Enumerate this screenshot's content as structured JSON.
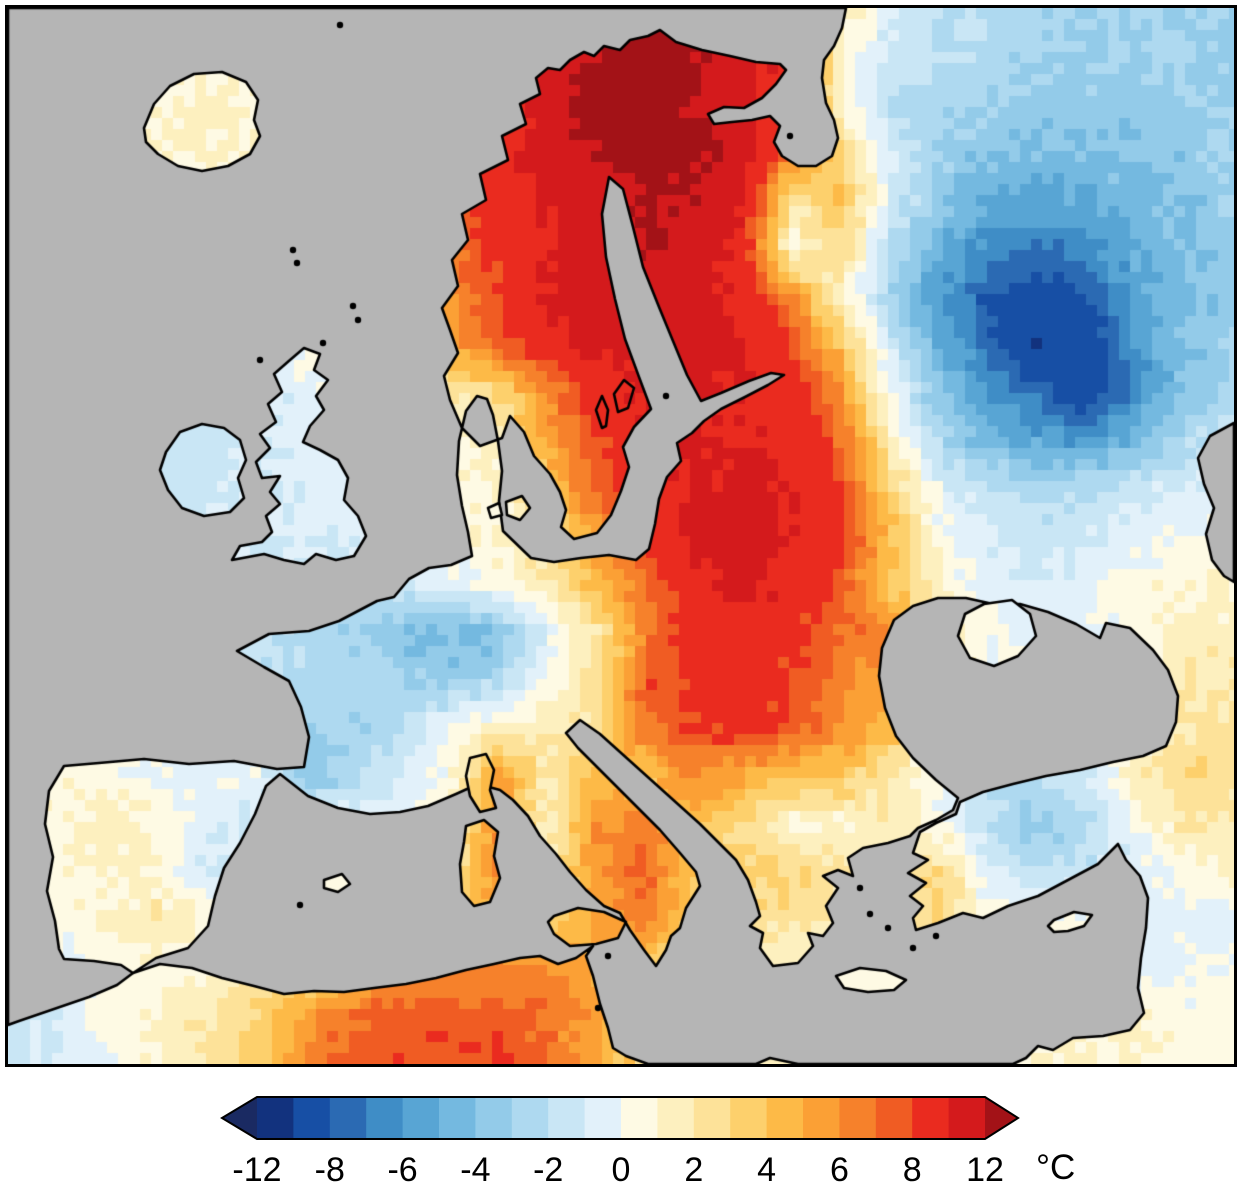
{
  "figure": {
    "description": "Pixelated temperature-anomaly map of Europe; land colored by anomaly, oceans masked gray",
    "sea_color": "#b5b5b5",
    "coastline_color": "#000000",
    "frame_color": "#000000",
    "background_color": "#ffffff"
  },
  "chart_data": {
    "type": "heatmap",
    "title": "",
    "units": "°C",
    "colorbar": {
      "unit_label": "°C",
      "orientation": "horizontal",
      "arrow_ends": true,
      "tick_labels": [
        "-12",
        "-8",
        "-6",
        "-4",
        "-2",
        "0",
        "2",
        "4",
        "6",
        "8",
        "12"
      ],
      "tick_values": [
        -12,
        -8,
        -6,
        -4,
        -2,
        0,
        2,
        4,
        6,
        8,
        12
      ],
      "tick_boundary_indices": [
        0,
        2,
        4,
        6,
        8,
        10,
        12,
        14,
        16,
        18,
        20
      ],
      "level_boundaries": [
        -12,
        -10,
        -8,
        -7,
        -6,
        -5,
        -4,
        -3,
        -2,
        -1,
        0,
        1,
        2,
        3,
        4,
        5,
        6,
        7,
        8,
        10,
        12
      ],
      "colors": [
        "#1a2a62",
        "#12327e",
        "#174fa5",
        "#2b6ab3",
        "#3f8dc6",
        "#58a5d4",
        "#74b9e0",
        "#93cbe9",
        "#aed9f0",
        "#c9e6f5",
        "#e2f1fa",
        "#fefae4",
        "#fdf0bf",
        "#fde299",
        "#fdd06c",
        "#fdba47",
        "#fba035",
        "#f6812b",
        "#f05c23",
        "#ea2b1f",
        "#d41a1c",
        "#a31217"
      ]
    },
    "grid": {
      "cols": 26,
      "rows": 23,
      "note": "anomaly values in degC sampled on a coarse lattice spanning the map area, west-to-east / north-to-south",
      "values": [
        [
          -1,
          -1,
          0,
          0,
          0,
          1,
          2,
          4,
          6,
          8,
          10,
          11,
          12,
          13,
          12,
          10,
          8,
          2,
          -1,
          -2,
          -2,
          -2.5,
          -3,
          -3,
          -3,
          -3
        ],
        [
          -1,
          -0.5,
          0,
          0.5,
          0,
          1,
          2,
          4,
          6,
          8,
          10,
          11,
          12,
          13,
          12,
          11,
          9,
          1,
          -1.5,
          -2,
          -2.5,
          -3,
          -3,
          -3,
          -3,
          -3
        ],
        [
          -0.5,
          0,
          0.5,
          1,
          1.5,
          1,
          2,
          3.5,
          5.5,
          7,
          9,
          11,
          13,
          13,
          12,
          11,
          8,
          1,
          -2,
          -2.5,
          -3,
          -3.5,
          -3.5,
          -3.5,
          -3,
          -3
        ],
        [
          0,
          0,
          0.5,
          1,
          1,
          1,
          1.5,
          3,
          5,
          7,
          9,
          11,
          12,
          13,
          12.5,
          11,
          7,
          3,
          -1,
          -3,
          -4,
          -4,
          -4,
          -4,
          -3.5,
          -3
        ],
        [
          0,
          0,
          0,
          0.5,
          0.5,
          0.5,
          1,
          2.5,
          5,
          7,
          9,
          10,
          11,
          12,
          12,
          10,
          2,
          4,
          -1,
          -3.5,
          -5,
          -5.5,
          -5,
          -4.5,
          -4,
          -3
        ],
        [
          0,
          0,
          0,
          0,
          0,
          0.5,
          1,
          2,
          4.5,
          6.5,
          8.5,
          10,
          11,
          12,
          11.5,
          9,
          0.5,
          3,
          -2,
          -5,
          -6.5,
          -7,
          -6.5,
          -5,
          -4,
          -3.5
        ],
        [
          -0.5,
          -0.5,
          -0.5,
          -0.5,
          -0.5,
          0,
          0.5,
          1.5,
          4,
          6,
          8,
          10,
          11,
          11.5,
          11,
          9.5,
          6,
          1,
          -3,
          -6,
          -8,
          -9,
          -8,
          -5.5,
          -4,
          -3.5
        ],
        [
          -0.5,
          -0.5,
          -1,
          -1,
          -1,
          -0.5,
          0,
          1,
          3.5,
          5.5,
          7.5,
          9.5,
          10.5,
          11,
          11,
          10,
          8,
          4,
          -1,
          -5,
          -7.5,
          -10,
          -9.5,
          -6,
          -4,
          -3
        ],
        [
          -0.5,
          -1,
          -1,
          -1.5,
          -1.5,
          -1,
          -0.5,
          0,
          1,
          2,
          3,
          6,
          8.5,
          10.5,
          10.5,
          10,
          9,
          6,
          0,
          -4,
          -6,
          -7.5,
          -9.5,
          -6.5,
          -4,
          -2.5
        ],
        [
          -0.5,
          -1,
          -1,
          -1.5,
          -1.5,
          -1,
          -0.5,
          0,
          0.5,
          1,
          1.5,
          5.5,
          8,
          9.5,
          10,
          10,
          9.5,
          7,
          1.5,
          -2.5,
          -4.5,
          -5.5,
          -6,
          -4.5,
          -2.5,
          -1.5
        ],
        [
          -0.5,
          -0.5,
          -1,
          -1.5,
          -1.5,
          -1,
          -1,
          -0.5,
          0,
          0.5,
          1,
          3.5,
          7.5,
          9,
          10,
          10.5,
          10,
          8,
          3,
          -0.5,
          -2,
          -2.5,
          -2,
          -1.5,
          -1,
          -0.5
        ],
        [
          -0.5,
          -0.5,
          -0.5,
          -1,
          -1,
          -1,
          -1,
          -0.5,
          0,
          0.5,
          1,
          2.5,
          5.5,
          8,
          10.5,
          11,
          10,
          8.5,
          4.5,
          0.5,
          -1,
          -1.5,
          -1,
          -0.5,
          0,
          0.5
        ],
        [
          0,
          0,
          -0.5,
          -0.5,
          -1,
          -1.5,
          -1.5,
          -2,
          -1.5,
          -0.5,
          0.5,
          2,
          4.5,
          7,
          9.5,
          10.5,
          9.5,
          7.5,
          4,
          1,
          -0.5,
          -1,
          -0.5,
          0.5,
          1,
          1
        ],
        [
          0,
          0,
          0,
          -0.5,
          -1,
          -1.5,
          -2.5,
          -3,
          -4,
          -4.5,
          -4,
          -0.5,
          2,
          6.5,
          9,
          9.5,
          8.5,
          7,
          6,
          2,
          0.5,
          -0.5,
          -0.5,
          0.5,
          1.5,
          1.5
        ],
        [
          0.5,
          0.5,
          0,
          -0.5,
          -1,
          -1.5,
          -2,
          -2.5,
          -3,
          -3.5,
          -2.5,
          0.5,
          2.5,
          7.5,
          8.5,
          9,
          8,
          6.5,
          5.5,
          1.5,
          0,
          -0.5,
          -0.5,
          0.5,
          2,
          2
        ],
        [
          0.5,
          0.5,
          0,
          -0.5,
          -1,
          -1.5,
          -3,
          -3,
          -2,
          0,
          1.5,
          1.5,
          2.5,
          7,
          8,
          8.5,
          7.5,
          6,
          4.5,
          1.5,
          0.5,
          -1,
          -1,
          0,
          2,
          2.5
        ],
        [
          0.5,
          0.5,
          0.5,
          0,
          -0.5,
          0,
          -4,
          -2.5,
          -1,
          0.5,
          5.5,
          2,
          4.5,
          3.5,
          6.5,
          5,
          4,
          4,
          2,
          -0.5,
          -2,
          -2.5,
          -1,
          1.5,
          3,
          2.5
        ],
        [
          0.5,
          1,
          1.5,
          1,
          -0.5,
          -1,
          -0.5,
          0,
          0.5,
          1,
          6,
          1,
          6,
          6.5,
          4,
          3,
          0.5,
          1,
          1.5,
          0.5,
          -2,
          -3.5,
          -2.5,
          0,
          2,
          2
        ],
        [
          0.5,
          0.5,
          1,
          1,
          -1,
          -1,
          0,
          0.5,
          1,
          2,
          6.5,
          2,
          5.5,
          7.5,
          4,
          3.5,
          3,
          2.5,
          2,
          3,
          -1,
          -2,
          -1.5,
          -0.5,
          0.5,
          1
        ],
        [
          0,
          0.5,
          1,
          2,
          1,
          0,
          1,
          1.5,
          2.5,
          3.5,
          4.5,
          3.5,
          5.5,
          6.5,
          3.5,
          2.5,
          2.5,
          1.5,
          1.5,
          3.5,
          0.5,
          0.5,
          0.5,
          -0.5,
          -0.5,
          -0.5
        ],
        [
          -1,
          -0.5,
          0.5,
          0.5,
          0.5,
          1.5,
          2.5,
          4,
          5.5,
          6,
          6,
          6.5,
          5,
          4,
          2,
          1.5,
          1,
          0.5,
          0.5,
          1,
          0.5,
          0,
          -0.5,
          -0.5,
          0,
          0.5
        ],
        [
          -1.5,
          -1,
          0.5,
          1,
          2,
          3,
          5.5,
          7,
          7.5,
          7.5,
          7.5,
          7,
          5.5,
          3.5,
          2,
          2,
          1.5,
          1,
          0.5,
          0.5,
          0.5,
          1,
          1,
          1,
          0.5,
          0.5
        ],
        [
          -1.5,
          -1,
          0,
          1,
          2,
          3.5,
          6,
          7.5,
          8,
          8,
          8,
          7,
          5,
          3,
          2,
          1.5,
          1.5,
          1,
          1,
          0.5,
          1,
          1,
          1.5,
          1,
          0.5,
          0.5
        ]
      ]
    },
    "regions_visible": [
      "Iceland",
      "British Isles",
      "Scandinavia",
      "Baltic",
      "Western Europe",
      "Iberia",
      "Italy",
      "Balkans",
      "Greece",
      "Turkey",
      "Black Sea",
      "North Africa",
      "Eastern Europe",
      "Western Russia"
    ]
  }
}
